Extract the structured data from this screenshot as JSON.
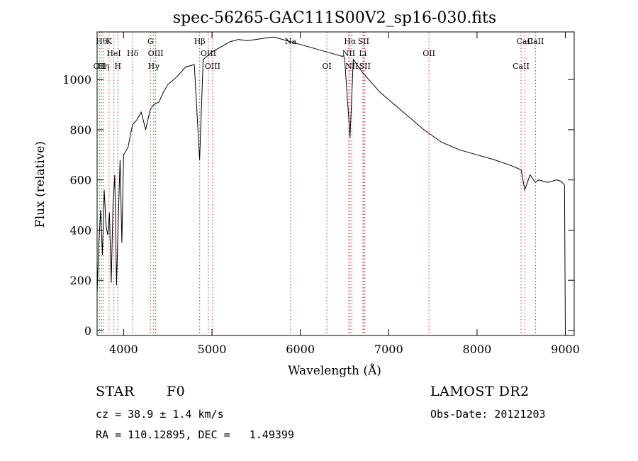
{
  "chart_data": {
    "type": "line",
    "title": "spec-56265-GAC111S00V2_sp16-030.fits",
    "xlabel": "Wavelength (Å)",
    "ylabel": "Flux (relative)",
    "xlim": [
      3700,
      9100
    ],
    "ylim": [
      -20,
      1190
    ],
    "x_ticks": [
      4000,
      5000,
      6000,
      7000,
      8000,
      9000
    ],
    "y_ticks": [
      0,
      200,
      400,
      600,
      800,
      1000
    ],
    "grid": false,
    "series": [
      {
        "x": [
          3700,
          3720,
          3740,
          3760,
          3780,
          3800,
          3820,
          3840,
          3860,
          3880,
          3900,
          3920,
          3940,
          3960,
          3980,
          4000,
          4050,
          4100,
          4150,
          4200,
          4250,
          4300,
          4340,
          4400,
          4450,
          4500,
          4600,
          4700,
          4800,
          4860,
          4900,
          5000,
          5100,
          5200,
          5300,
          5400,
          5500,
          5600,
          5700,
          5800,
          5900,
          6000,
          6100,
          6200,
          6300,
          6400,
          6500,
          6563,
          6600,
          6700,
          6800,
          6900,
          7000,
          7200,
          7400,
          7600,
          7800,
          8000,
          8200,
          8400,
          8500,
          8540,
          8600,
          8660,
          8700,
          8800,
          8900,
          8950,
          8990,
          9000
        ],
        "y": [
          150,
          350,
          480,
          300,
          560,
          420,
          380,
          470,
          190,
          500,
          620,
          180,
          450,
          680,
          350,
          700,
          730,
          820,
          840,
          870,
          800,
          880,
          900,
          910,
          950,
          980,
          1010,
          1050,
          1060,
          680,
          1080,
          1110,
          1130,
          1150,
          1160,
          1155,
          1160,
          1165,
          1170,
          1160,
          1150,
          1140,
          1130,
          1120,
          1110,
          1100,
          1090,
          770,
          1080,
          1030,
          990,
          950,
          920,
          860,
          800,
          750,
          720,
          700,
          680,
          655,
          640,
          560,
          620,
          590,
          600,
          590,
          600,
          595,
          580,
          0
        ]
      }
    ],
    "line_markers": [
      {
        "wavelength": 3727,
        "label": "OII",
        "row": 3
      },
      {
        "wavelength": 3750,
        "label": "Hθ",
        "row": 1
      },
      {
        "wavelength": 3771,
        "label": "Hη",
        "row": 3
      },
      {
        "wavelength": 3835,
        "label": "K",
        "row": 1
      },
      {
        "wavelength": 3889,
        "label": "HeI",
        "row": 2
      },
      {
        "wavelength": 3934,
        "label": "H",
        "row": 3
      },
      {
        "wavelength": 4102,
        "label": "Hδ",
        "row": 2
      },
      {
        "wavelength": 4304,
        "label": "G",
        "row": 1
      },
      {
        "wavelength": 4340,
        "label": "Hγ",
        "row": 3
      },
      {
        "wavelength": 4363,
        "label": "OIII",
        "row": 2
      },
      {
        "wavelength": 4861,
        "label": "Hβ",
        "row": 1
      },
      {
        "wavelength": 4959,
        "label": "OIII",
        "row": 2
      },
      {
        "wavelength": 5007,
        "label": "OIII",
        "row": 3
      },
      {
        "wavelength": 5890,
        "label": "Na",
        "row": 1
      },
      {
        "wavelength": 6300,
        "label": "OI",
        "row": 3
      },
      {
        "wavelength": 6548,
        "label": "NII",
        "row": 2
      },
      {
        "wavelength": 6563,
        "label": "Hα",
        "row": 1
      },
      {
        "wavelength": 6583,
        "label": "NII",
        "row": 3
      },
      {
        "wavelength": 6716,
        "label": "SII",
        "row": 1
      },
      {
        "wavelength": 6708,
        "label": "Li",
        "row": 2
      },
      {
        "wavelength": 6731,
        "label": "SII",
        "row": 3
      },
      {
        "wavelength": 7456,
        "label": "OII",
        "row": 2
      },
      {
        "wavelength": 8498,
        "label": "CaII",
        "row": 3
      },
      {
        "wavelength": 8542,
        "label": "CaII",
        "row": 1
      },
      {
        "wavelength": 8662,
        "label": "CaII",
        "row": 1
      }
    ]
  },
  "info": {
    "class_label": "STAR",
    "subclass": "F0",
    "survey": "LAMOST DR2",
    "redshift": "cz = 38.9 ± 1.4 km/s",
    "obs_date": "Obs-Date: 20121203",
    "coords": "RA = 110.12895, DEC =   1.49399"
  }
}
